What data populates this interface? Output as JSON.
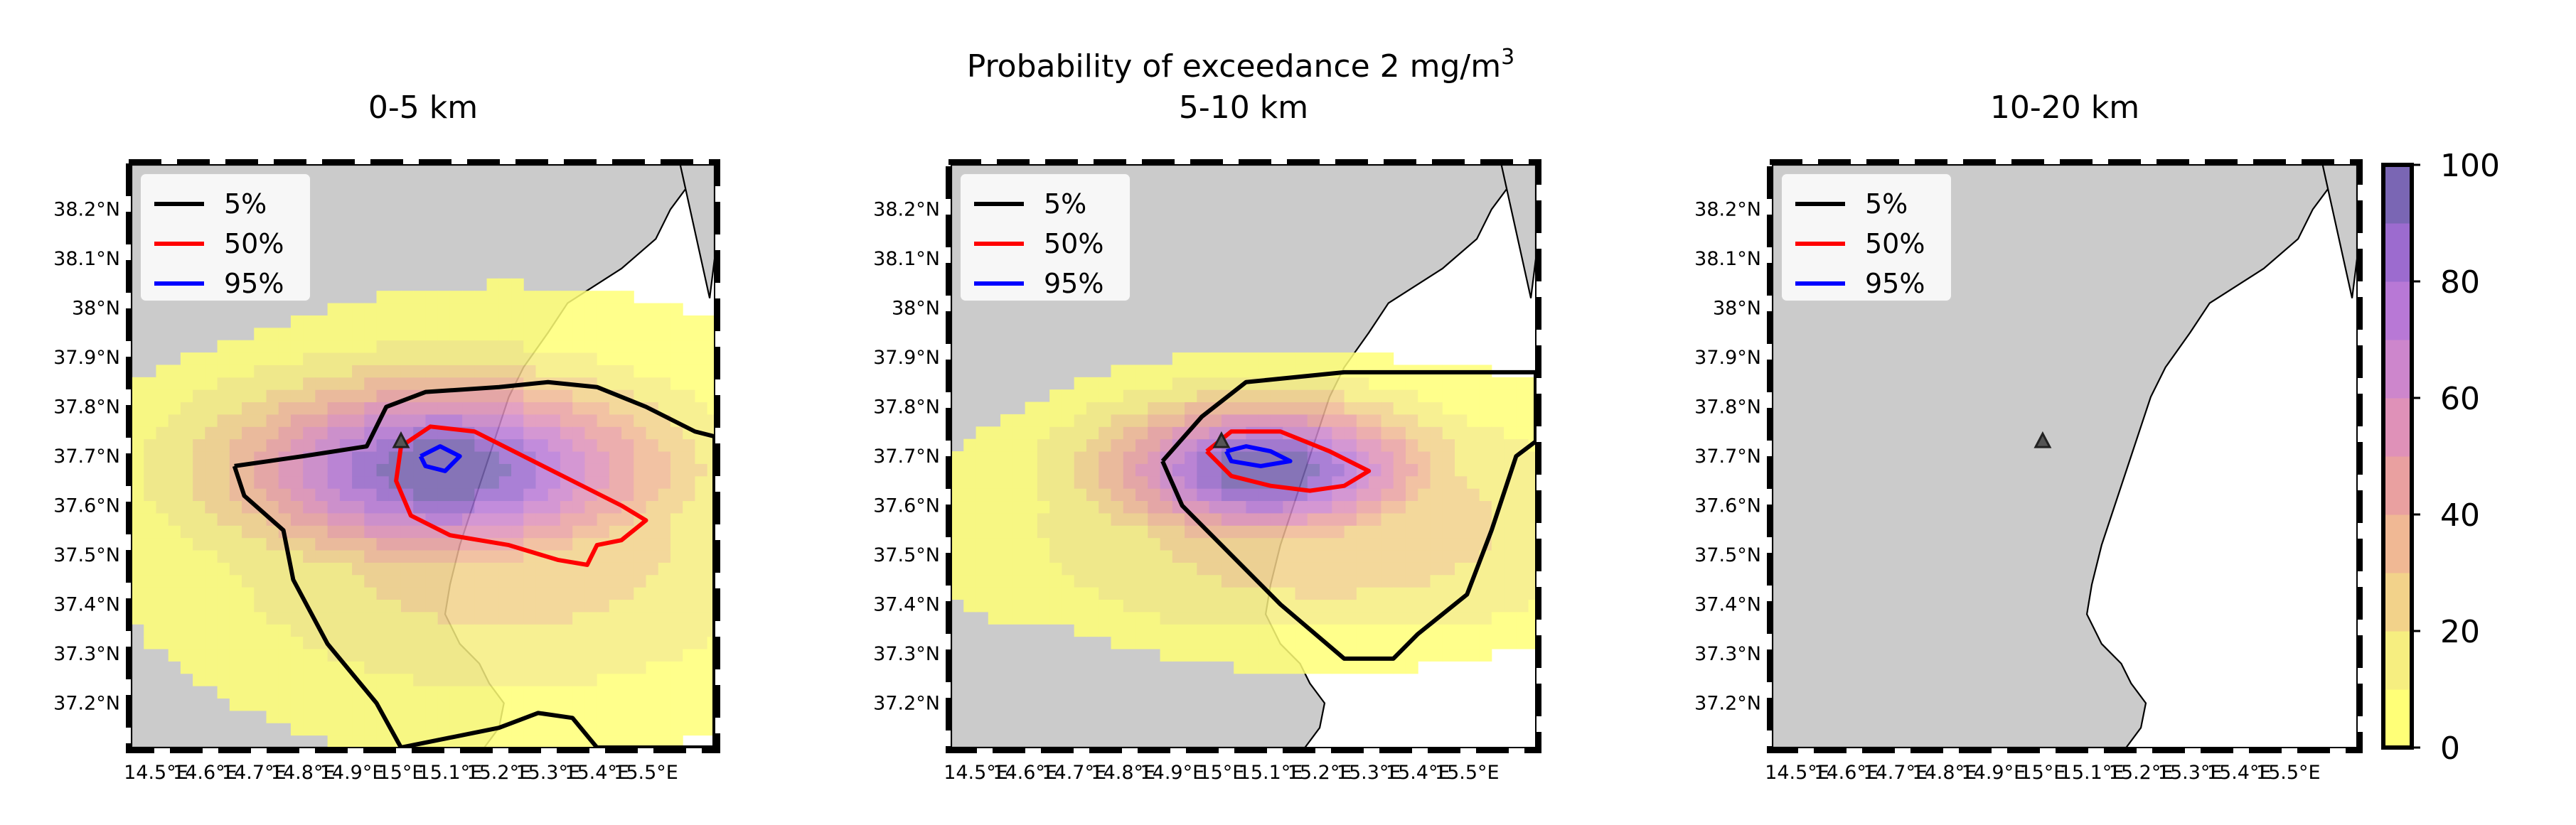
{
  "figure": {
    "suptitle_main": "Probability of exceedance 2 mg/m",
    "suptitle_sup": "3"
  },
  "chart_data": [
    {
      "type": "heatmap",
      "title": "0-5 km",
      "x_ticks": [
        "14.5°E",
        "14.6°E",
        "14.7°E",
        "14.8°E",
        "14.9°E",
        "15°E",
        "15.1°E",
        "15.2°E",
        "15.3°E",
        "15.4°E",
        "15.5°E"
      ],
      "y_ticks": [
        "38.2°N",
        "38.1°N",
        "38°N",
        "37.9°N",
        "37.8°N",
        "37.7°N",
        "37.6°N",
        "37.5°N",
        "37.4°N",
        "37.3°N",
        "37.2°N"
      ],
      "xlim": [
        14.45,
        15.64
      ],
      "ylim": [
        37.11,
        38.29
      ],
      "legend": [
        "5%",
        "50%",
        "95%"
      ],
      "legend_position": "upper-left",
      "vent": [
        15.0,
        37.73
      ]
    },
    {
      "type": "heatmap",
      "title": "5-10 km",
      "x_ticks": [
        "14.5°E",
        "14.6°E",
        "14.7°E",
        "14.8°E",
        "14.9°E",
        "15°E",
        "15.1°E",
        "15.2°E",
        "15.3°E",
        "15.4°E",
        "15.5°E"
      ],
      "y_ticks": [
        "38.2°N",
        "38.1°N",
        "38°N",
        "37.9°N",
        "37.8°N",
        "37.7°N",
        "37.6°N",
        "37.5°N",
        "37.4°N",
        "37.3°N",
        "37.2°N"
      ],
      "xlim": [
        14.45,
        15.64
      ],
      "ylim": [
        37.11,
        38.29
      ],
      "legend": [
        "5%",
        "50%",
        "95%"
      ],
      "legend_position": "upper-left",
      "vent": [
        15.0,
        37.73
      ]
    },
    {
      "type": "heatmap",
      "title": "10-20 km",
      "x_ticks": [
        "14.5°E",
        "14.6°E",
        "14.7°E",
        "14.8°E",
        "14.9°E",
        "15°E",
        "15.1°E",
        "15.2°E",
        "15.3°E",
        "15.4°E",
        "15.5°E"
      ],
      "y_ticks": [
        "38.2°N",
        "38.1°N",
        "38°N",
        "37.9°N",
        "37.8°N",
        "37.7°N",
        "37.6°N",
        "37.5°N",
        "37.4°N",
        "37.3°N",
        "37.2°N"
      ],
      "xlim": [
        14.45,
        15.64
      ],
      "ylim": [
        37.11,
        38.29
      ],
      "legend": [
        "5%",
        "50%",
        "95%"
      ],
      "legend_position": "upper-left",
      "vent": [
        15.0,
        37.73
      ]
    }
  ],
  "colorbar": {
    "range": [
      0,
      100
    ],
    "ticks": [
      "0",
      "20",
      "40",
      "60",
      "80",
      "100"
    ],
    "colors": [
      "#ffff77",
      "#f6ee80",
      "#f2d28a",
      "#f0b894",
      "#e9a0a0",
      "#df91b8",
      "#cd86cc",
      "#b878d6",
      "#9c6bcf",
      "#7a66b4"
    ]
  },
  "legend_colors": {
    "5%": "#000000",
    "50%": "#ff0000",
    "95%": "#0000ff"
  },
  "map_colors": {
    "land": "#cbcbcb",
    "sea": "#ffffff"
  }
}
